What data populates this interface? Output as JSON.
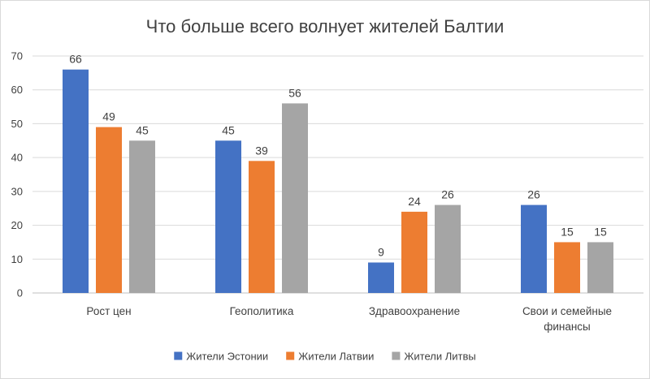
{
  "chart_data": {
    "type": "bar",
    "title": "Что больше всего волнует жителей Балтии",
    "categories": [
      [
        "Рост цен"
      ],
      [
        "Геополитика"
      ],
      [
        "Здравоохранение"
      ],
      [
        "Свои и семейные",
        "финансы"
      ]
    ],
    "series": [
      {
        "name": "Жители Эстонии",
        "color": "#4472C4",
        "values": [
          66,
          45,
          9,
          26
        ]
      },
      {
        "name": "Жители Латвии",
        "color": "#ED7D31",
        "values": [
          49,
          39,
          24,
          15
        ]
      },
      {
        "name": "Жители Литвы",
        "color": "#A5A5A5",
        "values": [
          45,
          56,
          26,
          15
        ]
      }
    ],
    "ylim": [
      0,
      70
    ],
    "yticks": [
      0,
      10,
      20,
      30,
      40,
      50,
      60,
      70
    ],
    "grid": true,
    "legend": "bottom",
    "data_labels": true
  }
}
